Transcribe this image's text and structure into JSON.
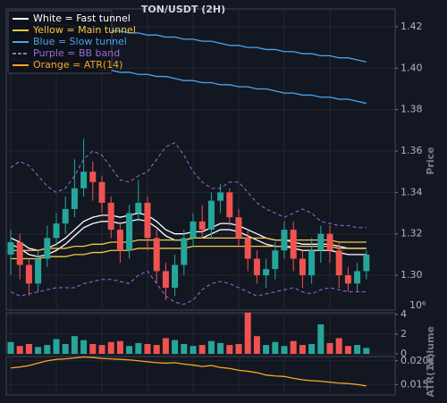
{
  "chart_data": [
    {
      "type": "candlestick",
      "title": "TON/USDT (2H)",
      "ylabel": "Price",
      "up_color": "#26a69a",
      "down_color": "#ef5350",
      "grid": true,
      "ylim": [
        1.2832,
        1.4286
      ],
      "yticks": [
        {
          "value": 1.3,
          "label": "1.30"
        },
        {
          "value": 1.32,
          "label": "1.32"
        },
        {
          "value": 1.34,
          "label": "1.34"
        },
        {
          "value": 1.36,
          "label": "1.36"
        },
        {
          "value": 1.38,
          "label": "1.38"
        },
        {
          "value": 1.4,
          "label": "1.40"
        },
        {
          "value": 1.42,
          "label": "1.42"
        }
      ],
      "open": [
        1.31,
        1.316,
        1.305,
        1.296,
        1.308,
        1.318,
        1.325,
        1.332,
        1.342,
        1.35,
        1.345,
        1.335,
        1.322,
        1.312,
        1.33,
        1.335,
        1.318,
        1.302,
        1.294,
        1.305,
        1.318,
        1.326,
        1.322,
        1.336,
        1.34,
        1.328,
        1.318,
        1.308,
        1.3,
        1.303,
        1.312,
        1.322,
        1.308,
        1.3,
        1.312,
        1.32,
        1.312,
        1.3,
        1.296,
        1.302
      ],
      "high": [
        1.322,
        1.32,
        1.308,
        1.312,
        1.324,
        1.33,
        1.338,
        1.356,
        1.366,
        1.355,
        1.348,
        1.338,
        1.326,
        1.334,
        1.346,
        1.338,
        1.322,
        1.306,
        1.31,
        1.322,
        1.33,
        1.334,
        1.34,
        1.344,
        1.342,
        1.332,
        1.322,
        1.312,
        1.308,
        1.316,
        1.326,
        1.326,
        1.312,
        1.318,
        1.324,
        1.324,
        1.316,
        1.304,
        1.306,
        1.312
      ],
      "low": [
        1.3,
        1.298,
        1.29,
        1.292,
        1.304,
        1.314,
        1.32,
        1.328,
        1.338,
        1.336,
        1.33,
        1.318,
        1.306,
        1.308,
        1.326,
        1.312,
        1.296,
        1.288,
        1.29,
        1.3,
        1.314,
        1.318,
        1.318,
        1.33,
        1.324,
        1.314,
        1.302,
        1.296,
        1.294,
        1.298,
        1.308,
        1.302,
        1.294,
        1.296,
        1.306,
        1.306,
        1.294,
        1.292,
        1.292,
        1.298
      ],
      "close": [
        1.316,
        1.305,
        1.296,
        1.308,
        1.318,
        1.325,
        1.332,
        1.342,
        1.35,
        1.345,
        1.335,
        1.322,
        1.312,
        1.33,
        1.335,
        1.318,
        1.302,
        1.294,
        1.305,
        1.318,
        1.326,
        1.322,
        1.336,
        1.34,
        1.328,
        1.318,
        1.308,
        1.3,
        1.303,
        1.312,
        1.322,
        1.308,
        1.3,
        1.312,
        1.32,
        1.312,
        1.3,
        1.296,
        1.302,
        1.31
      ],
      "series": [
        {
          "name": "White = Fast tunnel",
          "color": "#ffffff",
          "dashed": false,
          "upper": [
            1.318,
            1.316,
            1.313,
            1.312,
            1.313,
            1.315,
            1.318,
            1.322,
            1.326,
            1.328,
            1.329,
            1.329,
            1.328,
            1.329,
            1.33,
            1.329,
            1.326,
            1.322,
            1.32,
            1.32,
            1.321,
            1.321,
            1.323,
            1.325,
            1.325,
            1.324,
            1.322,
            1.32,
            1.318,
            1.317,
            1.317,
            1.316,
            1.315,
            1.315,
            1.315,
            1.315,
            1.314,
            1.313,
            1.313,
            1.313
          ],
          "lower": [
            1.315,
            1.313,
            1.31,
            1.309,
            1.31,
            1.312,
            1.315,
            1.319,
            1.323,
            1.325,
            1.326,
            1.326,
            1.325,
            1.326,
            1.327,
            1.326,
            1.323,
            1.319,
            1.317,
            1.317,
            1.318,
            1.318,
            1.32,
            1.322,
            1.322,
            1.321,
            1.319,
            1.317,
            1.315,
            1.314,
            1.314,
            1.313,
            1.312,
            1.312,
            1.312,
            1.312,
            1.311,
            1.31,
            1.31,
            1.31
          ]
        },
        {
          "name": "Yellow = Main tunnel",
          "color": "#f5c842",
          "dashed": false,
          "upper": [
            1.312,
            1.312,
            1.312,
            1.312,
            1.313,
            1.313,
            1.313,
            1.314,
            1.314,
            1.315,
            1.315,
            1.316,
            1.316,
            1.316,
            1.317,
            1.317,
            1.317,
            1.317,
            1.317,
            1.317,
            1.318,
            1.318,
            1.318,
            1.318,
            1.318,
            1.318,
            1.318,
            1.318,
            1.318,
            1.317,
            1.317,
            1.317,
            1.317,
            1.317,
            1.317,
            1.317,
            1.316,
            1.316,
            1.316,
            1.316
          ],
          "lower": [
            1.308,
            1.308,
            1.308,
            1.308,
            1.309,
            1.309,
            1.309,
            1.31,
            1.31,
            1.311,
            1.311,
            1.312,
            1.312,
            1.312,
            1.313,
            1.313,
            1.313,
            1.313,
            1.313,
            1.313,
            1.314,
            1.314,
            1.314,
            1.314,
            1.314,
            1.314,
            1.314,
            1.314,
            1.314,
            1.314,
            1.314,
            1.314,
            1.314,
            1.314,
            1.314,
            1.314,
            1.313,
            1.313,
            1.313,
            1.313
          ]
        },
        {
          "name": "Blue = Slow tunnel",
          "color": "#4aa3f0",
          "dashed": false,
          "upper": [
            1.424,
            1.423,
            1.423,
            1.422,
            1.422,
            1.421,
            1.421,
            1.42,
            1.42,
            1.419,
            1.419,
            1.418,
            1.418,
            1.417,
            1.417,
            1.416,
            1.416,
            1.415,
            1.415,
            1.414,
            1.414,
            1.413,
            1.413,
            1.412,
            1.411,
            1.411,
            1.41,
            1.41,
            1.409,
            1.409,
            1.408,
            1.408,
            1.407,
            1.407,
            1.406,
            1.406,
            1.405,
            1.405,
            1.404,
            1.403
          ],
          "lower": [
            1.404,
            1.404,
            1.403,
            1.403,
            1.402,
            1.402,
            1.401,
            1.401,
            1.4,
            1.4,
            1.399,
            1.399,
            1.398,
            1.398,
            1.397,
            1.397,
            1.396,
            1.396,
            1.395,
            1.394,
            1.394,
            1.393,
            1.393,
            1.392,
            1.392,
            1.391,
            1.391,
            1.39,
            1.39,
            1.389,
            1.388,
            1.388,
            1.387,
            1.387,
            1.386,
            1.386,
            1.385,
            1.385,
            1.384,
            1.383
          ]
        },
        {
          "name": "Purple = BB band",
          "color": "#9c6ade",
          "dashed": true,
          "upper": [
            1.352,
            1.355,
            1.353,
            1.348,
            1.343,
            1.34,
            1.342,
            1.348,
            1.356,
            1.36,
            1.358,
            1.352,
            1.346,
            1.345,
            1.348,
            1.35,
            1.356,
            1.362,
            1.364,
            1.358,
            1.35,
            1.345,
            1.342,
            1.342,
            1.345,
            1.345,
            1.34,
            1.335,
            1.332,
            1.33,
            1.328,
            1.33,
            1.332,
            1.33,
            1.326,
            1.325,
            1.324,
            1.324,
            1.323,
            1.323
          ],
          "lower": [
            1.292,
            1.29,
            1.291,
            1.292,
            1.293,
            1.294,
            1.294,
            1.294,
            1.296,
            1.297,
            1.298,
            1.298,
            1.297,
            1.296,
            1.3,
            1.302,
            1.296,
            1.29,
            1.287,
            1.286,
            1.288,
            1.293,
            1.296,
            1.297,
            1.296,
            1.294,
            1.292,
            1.29,
            1.291,
            1.292,
            1.293,
            1.294,
            1.292,
            1.291,
            1.293,
            1.294,
            1.293,
            1.292,
            1.292,
            1.292
          ]
        }
      ]
    },
    {
      "type": "bar",
      "ylabel": "Volume",
      "scale_label": "10⁶",
      "ylim": [
        0,
        4.18
      ],
      "yticks": [
        0,
        2,
        4
      ],
      "grid": true,
      "values": [
        1.2,
        0.8,
        1.0,
        0.7,
        0.9,
        1.5,
        1.0,
        1.8,
        1.4,
        1.0,
        0.9,
        1.2,
        1.3,
        0.8,
        1.1,
        1.0,
        0.9,
        1.6,
        1.4,
        1.0,
        0.8,
        0.9,
        1.3,
        1.1,
        0.9,
        1.0,
        4.2,
        1.8,
        0.9,
        1.2,
        0.8,
        1.3,
        0.9,
        1.0,
        3.0,
        1.1,
        1.6,
        0.8,
        0.9,
        0.6
      ]
    },
    {
      "type": "line",
      "ylabel": "ATR(14)",
      "ylim": [
        0.0128,
        0.0209
      ],
      "yticks": [
        0.015,
        {
          "value": 0.02,
          "label": "0.020"
        }
      ],
      "grid": true,
      "series": [
        {
          "name": "Orange = ATR(14)",
          "color": "#f5a623",
          "values": [
            0.0185,
            0.0187,
            0.019,
            0.0195,
            0.02,
            0.0203,
            0.0204,
            0.0206,
            0.0208,
            0.0207,
            0.0205,
            0.0204,
            0.0203,
            0.0202,
            0.02,
            0.0198,
            0.0196,
            0.0195,
            0.0196,
            0.0193,
            0.0191,
            0.0188,
            0.019,
            0.0186,
            0.0184,
            0.018,
            0.0178,
            0.0175,
            0.017,
            0.0168,
            0.0167,
            0.0163,
            0.016,
            0.0158,
            0.0157,
            0.0155,
            0.0153,
            0.0152,
            0.015,
            0.0147
          ]
        }
      ]
    }
  ]
}
